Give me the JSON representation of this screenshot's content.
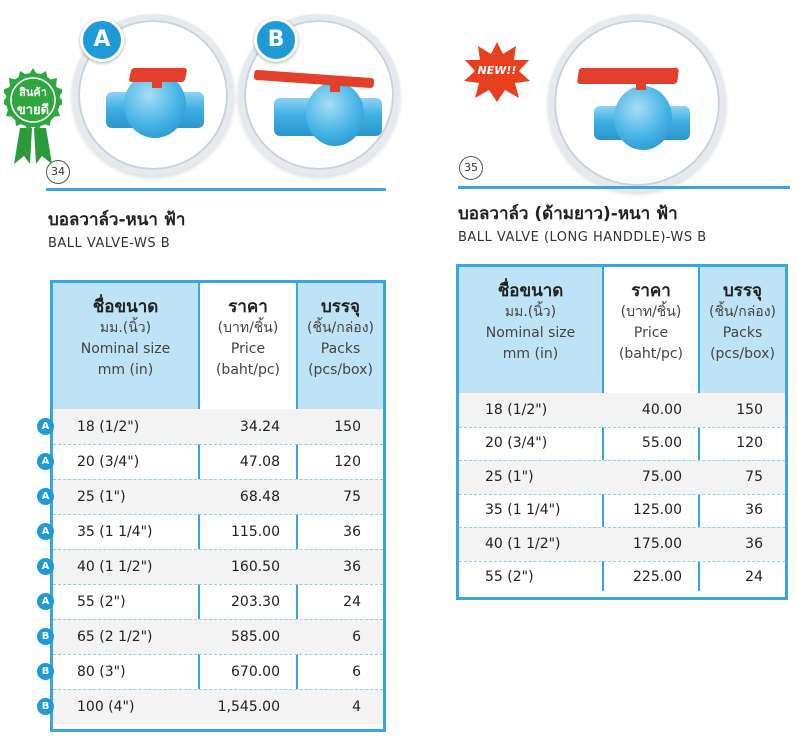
{
  "left": {
    "badge_ribbon": "สินค้า\nขายดี",
    "ribbon_line1": "สินค้า",
    "ribbon_line2": "ขายดี",
    "variant_a": "A",
    "variant_b": "B",
    "number": "34",
    "title_th": "บอลวาล์ว-หนา ฟ้า",
    "title_en": "BALL VALVE-WS B",
    "headers": {
      "size_th": "ชื่อขนาด",
      "size_unit": "มม.(นิ้ว)",
      "size_en1": "Nominal size",
      "size_en2": "mm (in)",
      "price_th": "ราคา",
      "price_unit": "(บาท/ชิ้น)",
      "price_en1": "Price",
      "price_en2": "(baht/pc)",
      "pack_th": "บรรจุ",
      "pack_unit": "(ชิ้น/กล่อง)",
      "pack_en1": "Packs",
      "pack_en2": "(pcs/box)"
    },
    "rows": [
      {
        "variant": "A",
        "size": "18 (1/2\")",
        "price": "34.24",
        "pack": "150"
      },
      {
        "variant": "A",
        "size": "20 (3/4\")",
        "price": "47.08",
        "pack": "120"
      },
      {
        "variant": "A",
        "size": "25 (1\")",
        "price": "68.48",
        "pack": "75"
      },
      {
        "variant": "A",
        "size": "35 (1 1/4\")",
        "price": "115.00",
        "pack": "36"
      },
      {
        "variant": "A",
        "size": "40 (1 1/2\")",
        "price": "160.50",
        "pack": "36"
      },
      {
        "variant": "A",
        "size": "55 (2\")",
        "price": "203.30",
        "pack": "24"
      },
      {
        "variant": "B",
        "size": "65 (2 1/2\")",
        "price": "585.00",
        "pack": "6"
      },
      {
        "variant": "B",
        "size": "80 (3\")",
        "price": "670.00",
        "pack": "6"
      },
      {
        "variant": "B",
        "size": "100 (4\")",
        "price": "1,545.00",
        "pack": "4"
      }
    ]
  },
  "right": {
    "new_label": "NEW!!",
    "number": "35",
    "title_th": "บอลวาล์ว (ด้ามยาว)-หนา ฟ้า",
    "title_en": "BALL VALVE (LONG HANDDLE)-WS B",
    "headers": {
      "size_th": "ชื่อขนาด",
      "size_unit": "มม.(นิ้ว)",
      "size_en1": "Nominal size",
      "size_en2": "mm (in)",
      "price_th": "ราคา",
      "price_unit": "(บาท/ชิ้น)",
      "price_en1": "Price",
      "price_en2": "(baht/pc)",
      "pack_th": "บรรจุ",
      "pack_unit": "(ชิ้น/กล่อง)",
      "pack_en1": "Packs",
      "pack_en2": "(pcs/box)"
    },
    "rows": [
      {
        "size": "18 (1/2\")",
        "price": "40.00",
        "pack": "150"
      },
      {
        "size": "20 (3/4\")",
        "price": "55.00",
        "pack": "120"
      },
      {
        "size": "25 (1\")",
        "price": "75.00",
        "pack": "75"
      },
      {
        "size": "35 (1 1/4\")",
        "price": "125.00",
        "pack": "36"
      },
      {
        "size": "40 (1 1/2\")",
        "price": "175.00",
        "pack": "36"
      },
      {
        "size": "55 (2\")",
        "price": "225.00",
        "pack": "24"
      }
    ]
  },
  "colors": {
    "accent": "#3aa7dc",
    "badge": "#1e9ad6",
    "header_bg": "#bfe3f6",
    "ribbon": "#2c9a3a",
    "handle": "#e2402c"
  }
}
